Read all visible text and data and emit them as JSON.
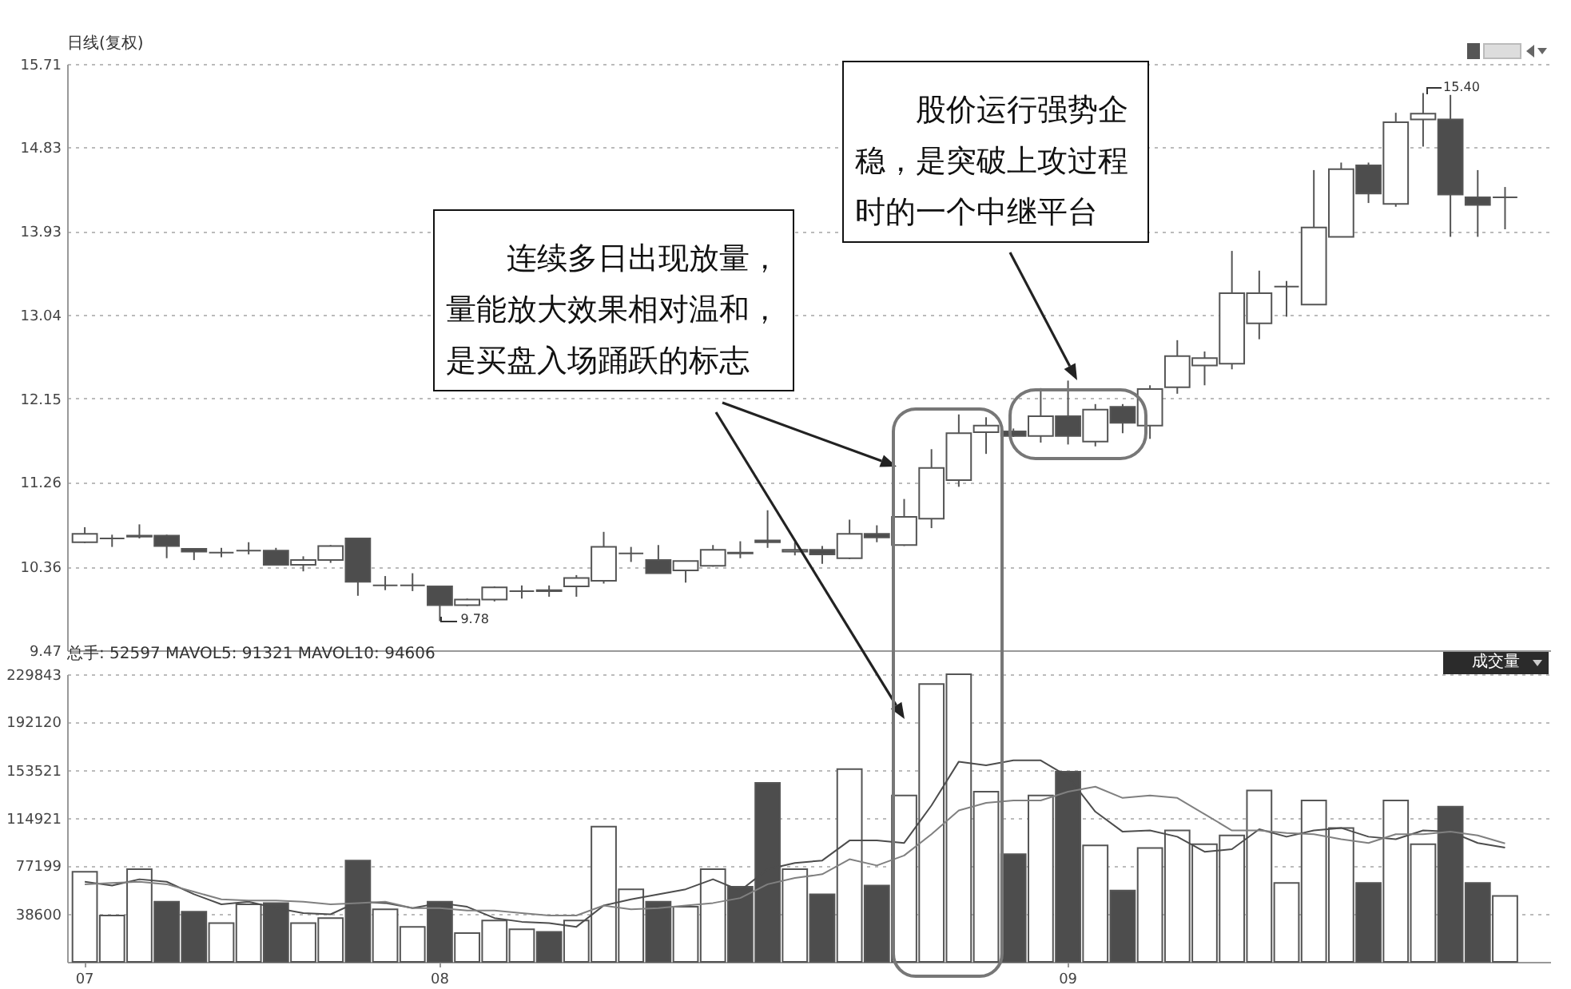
{
  "chart_data": [
    {
      "type": "candlestick",
      "title": "日线(复权)",
      "categories": [
        "07",
        null,
        null,
        null,
        null,
        null,
        null,
        null,
        null,
        null,
        null,
        null,
        null,
        "08",
        null,
        null,
        null,
        null,
        null,
        null,
        null,
        null,
        null,
        null,
        null,
        null,
        null,
        null,
        null,
        null,
        null,
        null,
        null,
        null,
        null,
        null,
        "09",
        null,
        null,
        null,
        null,
        null,
        null,
        null,
        null,
        null,
        null,
        null,
        null,
        null,
        null,
        null,
        null
      ],
      "ohlc": [
        [
          10.62,
          10.78,
          10.61,
          10.71
        ],
        [
          10.66,
          10.7,
          10.57,
          10.66
        ],
        [
          10.68,
          10.81,
          10.66,
          10.69
        ],
        [
          10.69,
          10.7,
          10.45,
          10.58
        ],
        [
          10.55,
          10.55,
          10.43,
          10.52
        ],
        [
          10.51,
          10.56,
          10.46,
          10.51
        ],
        [
          10.53,
          10.62,
          10.49,
          10.53
        ],
        [
          10.53,
          10.56,
          10.38,
          10.38
        ],
        [
          10.38,
          10.47,
          10.31,
          10.43
        ],
        [
          10.43,
          10.59,
          10.4,
          10.58
        ],
        [
          10.66,
          10.66,
          10.05,
          10.2
        ],
        [
          10.16,
          10.26,
          10.11,
          10.16
        ],
        [
          10.16,
          10.29,
          10.1,
          10.16
        ],
        [
          10.15,
          10.15,
          9.78,
          9.95
        ],
        [
          9.95,
          10.02,
          9.94,
          10.01
        ],
        [
          10.01,
          10.15,
          9.99,
          10.14
        ],
        [
          10.1,
          10.16,
          10.02,
          10.1
        ],
        [
          10.11,
          10.16,
          10.04,
          10.1
        ],
        [
          10.15,
          10.27,
          10.04,
          10.24
        ],
        [
          10.21,
          10.73,
          10.18,
          10.57
        ],
        [
          10.5,
          10.57,
          10.41,
          10.5
        ],
        [
          10.43,
          10.59,
          10.29,
          10.29
        ],
        [
          10.32,
          10.42,
          10.19,
          10.42
        ],
        [
          10.37,
          10.59,
          10.36,
          10.54
        ],
        [
          10.51,
          10.63,
          10.45,
          10.5
        ],
        [
          10.64,
          10.96,
          10.56,
          10.62
        ],
        [
          10.52,
          10.62,
          10.48,
          10.54
        ],
        [
          10.54,
          10.58,
          10.39,
          10.49
        ],
        [
          10.45,
          10.86,
          10.44,
          10.71
        ],
        [
          10.71,
          10.8,
          10.62,
          10.67
        ],
        [
          10.59,
          11.08,
          10.58,
          10.89
        ],
        [
          10.87,
          11.61,
          10.77,
          11.41
        ],
        [
          11.28,
          11.98,
          11.21,
          11.78
        ],
        [
          11.79,
          11.95,
          11.56,
          11.86
        ],
        [
          11.8,
          11.83,
          11.74,
          11.75
        ],
        [
          11.75,
          12.26,
          11.68,
          11.96
        ],
        [
          11.96,
          12.34,
          11.66,
          11.75
        ],
        [
          11.69,
          12.09,
          11.64,
          12.03
        ],
        [
          12.06,
          12.09,
          11.78,
          11.89
        ],
        [
          11.86,
          12.29,
          11.72,
          12.25
        ],
        [
          12.27,
          12.77,
          12.2,
          12.6
        ],
        [
          12.5,
          12.65,
          12.29,
          12.58
        ],
        [
          12.52,
          13.72,
          12.46,
          13.27
        ],
        [
          12.95,
          13.51,
          12.78,
          13.27
        ],
        [
          13.34,
          13.4,
          13.02,
          13.34
        ],
        [
          13.15,
          14.58,
          13.15,
          13.97
        ],
        [
          13.87,
          14.66,
          13.87,
          14.59
        ],
        [
          14.63,
          14.66,
          14.23,
          14.33
        ],
        [
          14.22,
          15.19,
          14.19,
          15.09
        ],
        [
          15.12,
          15.4,
          14.83,
          15.18
        ],
        [
          15.12,
          15.38,
          13.87,
          14.32
        ],
        [
          14.29,
          14.58,
          13.87,
          14.21
        ],
        [
          14.29,
          14.4,
          13.95,
          14.29
        ]
      ],
      "colors": [
        "#ffffff",
        "#555555",
        "#ffffff",
        "#4d4d4d",
        "#4d4d4d",
        "#555555",
        "#555555",
        "#4d4d4d",
        "#ffffff",
        "#ffffff",
        "#4d4d4d",
        "#555555",
        "#555555",
        "#4d4d4d",
        "#ffffff",
        "#ffffff",
        "#555555",
        "#4d4d4d",
        "#ffffff",
        "#ffffff",
        "#555555",
        "#4d4d4d",
        "#ffffff",
        "#ffffff",
        "#4d4d4d",
        "#4d4d4d",
        "#ffffff",
        "#4d4d4d",
        "#ffffff",
        "#4d4d4d",
        "#ffffff",
        "#ffffff",
        "#ffffff",
        "#ffffff",
        "#4d4d4d",
        "#ffffff",
        "#4d4d4d",
        "#ffffff",
        "#4d4d4d",
        "#ffffff",
        "#ffffff",
        "#ffffff",
        "#ffffff",
        "#ffffff",
        "#555555",
        "#ffffff",
        "#ffffff",
        "#4d4d4d",
        "#ffffff",
        "#ffffff",
        "#4d4d4d",
        "#4d4d4d",
        "#555555"
      ],
      "ylim": [
        9.47,
        15.71
      ],
      "yticks": [
        9.47,
        10.36,
        11.26,
        12.15,
        13.04,
        13.93,
        14.83,
        15.71
      ],
      "grid": "y",
      "tick_labels": "y",
      "annotations": [
        {
          "text": "9.78",
          "x": "08",
          "y": 9.78
        },
        "15.40",
        "连续多日出现放量，量能放大效果相对温和，是买盘入场踊跃的标志",
        "股价运行强势企稳，是突破上攻过程时的一个中继平台"
      ]
    },
    {
      "type": "bar",
      "title": "总手: 52597 MAVOL5: 91321 MAVOL10: 94606",
      "categories": [
        "07",
        null,
        null,
        null,
        null,
        null,
        null,
        null,
        null,
        null,
        null,
        null,
        null,
        "08",
        null,
        null,
        null,
        null,
        null,
        null,
        null,
        null,
        null,
        null,
        null,
        null,
        null,
        null,
        null,
        null,
        null,
        null,
        null,
        null,
        null,
        null,
        "09",
        null,
        null,
        null,
        null,
        null,
        null,
        null,
        null,
        null,
        null,
        null,
        null,
        null,
        null,
        null,
        null
      ],
      "series": [
        {
          "colors": [
            "#ffffff",
            "#ffffff",
            "#ffffff",
            "#4d4d4d",
            "#4d4d4d",
            "#ffffff",
            "#ffffff",
            "#4d4d4d",
            "#ffffff",
            "#ffffff",
            "#4d4d4d",
            "#ffffff",
            "#ffffff",
            "#4d4d4d",
            "#ffffff",
            "#ffffff",
            "#ffffff",
            "#4d4d4d",
            "#ffffff",
            "#ffffff",
            "#ffffff",
            "#4d4d4d",
            "#ffffff",
            "#ffffff",
            "#4d4d4d",
            "#4d4d4d",
            "#ffffff",
            "#4d4d4d",
            "#ffffff",
            "#4d4d4d",
            "#ffffff",
            "#ffffff",
            "#ffffff",
            "#ffffff",
            "#4d4d4d",
            "#ffffff",
            "#4d4d4d",
            "#ffffff",
            "#4d4d4d",
            "#ffffff",
            "#ffffff",
            "#ffffff",
            "#ffffff",
            "#ffffff",
            "#ffffff",
            "#ffffff",
            "#ffffff",
            "#4d4d4d",
            "#ffffff",
            "#ffffff",
            "#4d4d4d",
            "#4d4d4d",
            "#ffffff"
          ],
          "values": [
            72000,
            37000,
            74000,
            48000,
            40000,
            31000,
            46000,
            47000,
            31000,
            35000,
            81000,
            42000,
            28000,
            48000,
            23000,
            33000,
            26000,
            24000,
            33000,
            108000,
            58000,
            48000,
            44000,
            74000,
            60000,
            143000,
            74000,
            54000,
            154000,
            61000,
            133000,
            222000,
            229843,
            136000,
            86000,
            133000,
            152000,
            93000,
            57000,
            91000,
            105000,
            94000,
            101000,
            137000,
            63000,
            129000,
            107000,
            63000,
            129000,
            94000,
            124000,
            63000,
            52597
          ]
        },
        {
          "type": "line",
          "color": "#4d4d4d",
          "values": [
            64000,
            61000,
            66000,
            64000,
            54000,
            46000,
            48000,
            43000,
            39000,
            38000,
            48000,
            47000,
            43000,
            47000,
            44000,
            35000,
            32000,
            31000,
            28000,
            45000,
            50000,
            54000,
            58000,
            66000,
            57000,
            74000,
            79000,
            81000,
            97000,
            97000,
            95000,
            125000,
            160000,
            157000,
            161000,
            161000,
            148000,
            120000,
            104000,
            105000,
            100000,
            88000,
            90000,
            106000,
            100000,
            105000,
            107000,
            100000,
            98000,
            105000,
            104000,
            95000,
            91321
          ]
        },
        {
          "type": "line",
          "color": "#808080",
          "values": [
            62000,
            63000,
            64000,
            62000,
            56000,
            50000,
            49000,
            49000,
            48000,
            46000,
            47000,
            48000,
            43000,
            43000,
            41000,
            41000,
            39000,
            37000,
            37000,
            45000,
            42000,
            43000,
            45000,
            47000,
            51000,
            62000,
            67000,
            70000,
            82000,
            77000,
            85000,
            102000,
            121000,
            127000,
            129000,
            129000,
            136000,
            140000,
            131000,
            133000,
            131000,
            118000,
            105000,
            105000,
            103000,
            102000,
            98000,
            95000,
            102000,
            102000,
            104000,
            101000,
            94606
          ]
        }
      ],
      "ylim": [
        0,
        229843
      ],
      "yticks": [
        38600,
        77199,
        114921,
        153521,
        192120,
        229843
      ],
      "grid": "y",
      "annotations": [
        "成交量"
      ]
    }
  ]
}
